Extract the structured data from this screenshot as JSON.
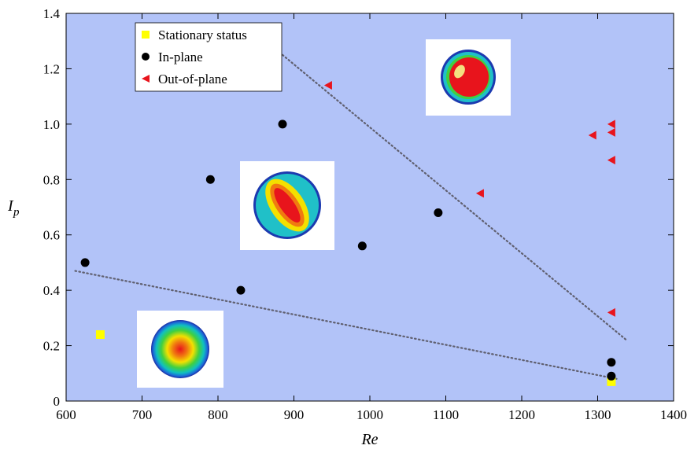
{
  "chart_data": {
    "type": "scatter",
    "xlabel": "Re",
    "ylabel": "I",
    "ylabel_sub": "p",
    "xlim": [
      600,
      1400
    ],
    "ylim": [
      0,
      1.4
    ],
    "xticks": [
      600,
      700,
      800,
      900,
      1000,
      1100,
      1200,
      1300,
      1400
    ],
    "yticks": [
      0,
      0.2,
      0.4,
      0.6,
      0.8,
      1.0,
      1.2,
      1.4
    ],
    "ytick_labels": [
      "0",
      "0.2",
      "0.4",
      "0.6",
      "0.8",
      "1.0",
      "1.2",
      "1.4"
    ],
    "background_color": "#b2c3f8",
    "legend_position": "top-left",
    "series": [
      {
        "name": "Stationary status",
        "marker": "square",
        "color": "#ffff00",
        "points": [
          [
            645,
            0.24
          ],
          [
            1318,
            0.07
          ]
        ]
      },
      {
        "name": "In-plane",
        "marker": "circle",
        "color": "#000000",
        "points": [
          [
            625,
            0.5
          ],
          [
            790,
            0.8
          ],
          [
            830,
            0.4
          ],
          [
            885,
            1.0
          ],
          [
            990,
            0.56
          ],
          [
            1090,
            0.68
          ],
          [
            1318,
            0.09
          ],
          [
            1318,
            0.14
          ]
        ]
      },
      {
        "name": "Out-of-plane",
        "marker": "triangle-left",
        "color": "#e8141c",
        "points": [
          [
            945,
            1.14
          ],
          [
            1145,
            0.75
          ],
          [
            1293,
            0.96
          ],
          [
            1318,
            1.0
          ],
          [
            1318,
            0.97
          ],
          [
            1318,
            0.87
          ],
          [
            1318,
            0.32
          ]
        ]
      }
    ],
    "boundary_lines": [
      {
        "style": "dotted",
        "points": [
          [
            612,
            0.47
          ],
          [
            1325,
            0.08
          ]
        ]
      },
      {
        "style": "dotted",
        "points": [
          [
            885,
            1.25
          ],
          [
            1338,
            0.22
          ]
        ]
      }
    ]
  }
}
